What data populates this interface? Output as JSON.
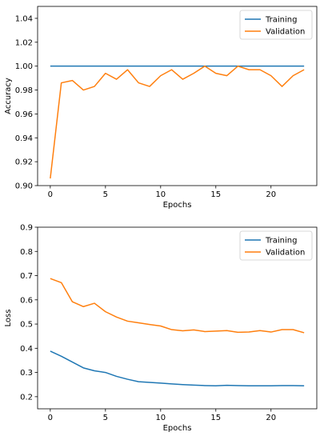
{
  "colors": {
    "training": "#1f77b4",
    "validation": "#ff7f0e"
  },
  "chart_data": [
    {
      "type": "line",
      "xlabel": "Epochs",
      "ylabel": "Accuracy",
      "xlim": [
        -1.15,
        24.15
      ],
      "ylim": [
        0.9,
        1.05
      ],
      "xticks": [
        0,
        5,
        10,
        15,
        20
      ],
      "yticks": [
        0.9,
        0.92,
        0.94,
        0.96,
        0.98,
        1.0,
        1.02,
        1.04
      ],
      "ytick_labels": [
        "0.90",
        "0.92",
        "0.94",
        "0.96",
        "0.98",
        "1.00",
        "1.02",
        "1.04"
      ],
      "grid": false,
      "legend": "top-right",
      "x": [
        0,
        1,
        2,
        3,
        4,
        5,
        6,
        7,
        8,
        9,
        10,
        11,
        12,
        13,
        14,
        15,
        16,
        17,
        18,
        19,
        20,
        21,
        22,
        23
      ],
      "series": [
        {
          "name": "Training",
          "values": [
            1,
            1,
            1,
            1,
            1,
            1,
            1,
            1,
            1,
            1,
            1,
            1,
            1,
            1,
            1,
            1,
            1,
            1,
            1,
            1,
            1,
            1,
            1,
            1
          ]
        },
        {
          "name": "Validation",
          "values": [
            0.906,
            0.986,
            0.988,
            0.98,
            0.983,
            0.994,
            0.989,
            0.997,
            0.986,
            0.983,
            0.992,
            0.997,
            0.989,
            0.994,
            1.0,
            0.994,
            0.992,
            1.0,
            0.997,
            0.997,
            0.992,
            0.983,
            0.992,
            0.997
          ]
        }
      ]
    },
    {
      "type": "line",
      "xlabel": "Epochs",
      "ylabel": "Loss",
      "xlim": [
        -1.15,
        24.15
      ],
      "ylim": [
        0.15,
        0.9
      ],
      "xticks": [
        0,
        5,
        10,
        15,
        20
      ],
      "yticks": [
        0.2,
        0.3,
        0.4,
        0.5,
        0.6,
        0.7,
        0.8,
        0.9
      ],
      "ytick_labels": [
        "0.2",
        "0.3",
        "0.4",
        "0.5",
        "0.6",
        "0.7",
        "0.8",
        "0.9"
      ],
      "grid": false,
      "legend": "top-right",
      "x": [
        0,
        1,
        2,
        3,
        4,
        5,
        6,
        7,
        8,
        9,
        10,
        11,
        12,
        13,
        14,
        15,
        16,
        17,
        18,
        19,
        20,
        21,
        22,
        23
      ],
      "series": [
        {
          "name": "Training",
          "values": [
            0.388,
            0.367,
            0.343,
            0.319,
            0.307,
            0.3,
            0.284,
            0.272,
            0.262,
            0.259,
            0.256,
            0.253,
            0.25,
            0.248,
            0.246,
            0.245,
            0.247,
            0.246,
            0.245,
            0.245,
            0.245,
            0.246,
            0.246,
            0.245
          ]
        },
        {
          "name": "Validation",
          "values": [
            0.688,
            0.671,
            0.592,
            0.572,
            0.586,
            0.551,
            0.529,
            0.512,
            0.505,
            0.498,
            0.492,
            0.477,
            0.472,
            0.476,
            0.469,
            0.471,
            0.473,
            0.466,
            0.467,
            0.473,
            0.467,
            0.477,
            0.477,
            0.464
          ]
        }
      ]
    }
  ]
}
